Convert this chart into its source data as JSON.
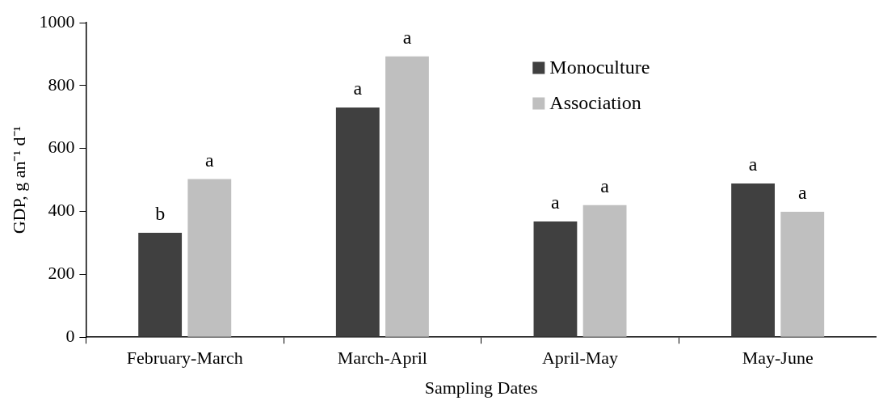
{
  "chart_data": {
    "type": "bar",
    "xlabel": "Sampling Dates",
    "ylabel": "GDP, g an⁻¹ d⁻¹",
    "categories": [
      "February-March",
      "March-April",
      "April-May",
      "May-June"
    ],
    "series": [
      {
        "name": "Monoculture",
        "color": "#404040",
        "values": [
          332,
          730,
          368,
          489
        ],
        "value_labels": [
          "b",
          "a",
          "a",
          "a"
        ]
      },
      {
        "name": "Association",
        "color": "#bfbfbf",
        "values": [
          503,
          893,
          420,
          399
        ],
        "value_labels": [
          "a",
          "a",
          "a",
          "a"
        ]
      }
    ],
    "ylim": [
      0,
      1000
    ],
    "yticks": [
      0,
      200,
      400,
      600,
      800,
      1000
    ],
    "grid": false,
    "legend": "top right"
  }
}
